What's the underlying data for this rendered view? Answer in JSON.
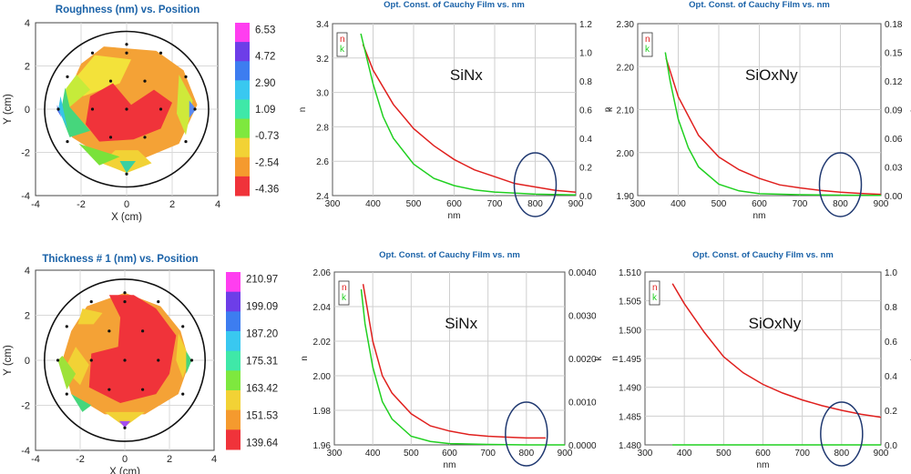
{
  "chart_data": [
    {
      "type": "heatmap",
      "title": "Roughness (nm) vs. Position",
      "xlabel": "X (cm)",
      "ylabel": "Y (cm)",
      "xlim": [
        -4,
        4
      ],
      "ylim": [
        -4,
        4
      ],
      "xticks": [
        "-4",
        "-2",
        "0",
        "2",
        "4"
      ],
      "yticks": [
        "4",
        "2",
        "0",
        "-2",
        "-4"
      ],
      "colorbar": [
        "6.53",
        "4.72",
        "2.90",
        "1.09",
        "-0.73",
        "-2.54",
        "-4.36"
      ],
      "points": [
        [
          0,
          3
        ],
        [
          -1.5,
          2.6
        ],
        [
          0,
          2.6
        ],
        [
          1.5,
          2.6
        ],
        [
          -2.6,
          1.5
        ],
        [
          -0.7,
          1.3
        ],
        [
          0.8,
          1.3
        ],
        [
          2.6,
          1.5
        ],
        [
          -3,
          0
        ],
        [
          -1.5,
          0
        ],
        [
          0,
          0
        ],
        [
          1.5,
          0
        ],
        [
          3,
          0
        ],
        [
          -2.6,
          -1.5
        ],
        [
          -0.7,
          -1.3
        ],
        [
          0.8,
          -1.3
        ],
        [
          2.6,
          -1.5
        ],
        [
          0,
          -3
        ]
      ]
    },
    {
      "type": "line",
      "title": "Opt. Const. of Cauchy Film vs. nm",
      "annotation": "SiNx",
      "xlabel": "nm",
      "ylabel": "n",
      "y2label": "k",
      "xlim": [
        300,
        900
      ],
      "ylim": [
        2.4,
        3.4
      ],
      "y2lim": [
        0.0,
        1.2
      ],
      "xticks": [
        "300",
        "400",
        "500",
        "600",
        "700",
        "800",
        "900"
      ],
      "yticks": [
        "3.4",
        "3.2",
        "3.0",
        "2.8",
        "2.6",
        "2.4"
      ],
      "y2ticks": [
        "1.2",
        "1.0",
        "0.8",
        "0.6",
        "0.4",
        "0.2",
        "0.0"
      ],
      "legend": [
        "n",
        "k"
      ],
      "series": [
        {
          "name": "n",
          "color": "#e0201e",
          "x": [
            375,
            400,
            450,
            500,
            550,
            600,
            650,
            700,
            750,
            800,
            850,
            900
          ],
          "y": [
            3.28,
            3.13,
            2.93,
            2.79,
            2.69,
            2.61,
            2.55,
            2.51,
            2.47,
            2.45,
            2.43,
            2.42
          ]
        },
        {
          "name": "k",
          "color": "#20d020",
          "x": [
            370,
            400,
            425,
            450,
            500,
            550,
            600,
            650,
            700,
            800,
            900
          ],
          "y": [
            1.13,
            0.78,
            0.55,
            0.4,
            0.22,
            0.12,
            0.07,
            0.04,
            0.025,
            0.01,
            0.005
          ],
          "axis": "y2"
        }
      ],
      "highlight_x": 800
    },
    {
      "type": "line",
      "title": "Opt. Const. of Cauchy Film vs. nm",
      "annotation": "SiOxNy",
      "xlabel": "nm",
      "ylabel": "n",
      "y2label": "k",
      "xlim": [
        300,
        900
      ],
      "ylim": [
        1.9,
        2.3
      ],
      "y2lim": [
        0.0,
        0.18
      ],
      "xticks": [
        "300",
        "400",
        "500",
        "600",
        "700",
        "800",
        "900"
      ],
      "yticks": [
        "2.30",
        "2.20",
        "2.10",
        "2.00",
        "1.90"
      ],
      "y2ticks": [
        "0.18",
        "0.15",
        "0.12",
        "0.09",
        "0.06",
        "0.03",
        "0.00"
      ],
      "legend": [
        "n",
        "k"
      ],
      "series": [
        {
          "name": "n",
          "color": "#e0201e",
          "x": [
            370,
            400,
            450,
            500,
            550,
            600,
            650,
            700,
            750,
            800,
            850,
            900
          ],
          "y": [
            2.22,
            2.13,
            2.04,
            1.99,
            1.96,
            1.94,
            1.925,
            1.918,
            1.912,
            1.908,
            1.905,
            1.903
          ]
        },
        {
          "name": "k",
          "color": "#20d020",
          "x": [
            368,
            380,
            400,
            425,
            450,
            500,
            550,
            600,
            700,
            800,
            900
          ],
          "y": [
            0.15,
            0.12,
            0.08,
            0.05,
            0.03,
            0.012,
            0.005,
            0.002,
            0.001,
            0.0005,
            0.0003
          ],
          "axis": "y2"
        }
      ],
      "highlight_x": 800
    },
    {
      "type": "heatmap",
      "title": "Thickness # 1 (nm) vs. Position",
      "xlabel": "X (cm)",
      "ylabel": "Y (cm)",
      "xlim": [
        -4,
        4
      ],
      "ylim": [
        -4,
        4
      ],
      "xticks": [
        "-4",
        "-2",
        "0",
        "2",
        "4"
      ],
      "yticks": [
        "4",
        "2",
        "0",
        "-2",
        "-4"
      ],
      "colorbar": [
        "210.97",
        "199.09",
        "187.20",
        "175.31",
        "163.42",
        "151.53",
        "139.64"
      ],
      "points": [
        [
          0,
          3
        ],
        [
          -1.5,
          2.6
        ],
        [
          0,
          2.6
        ],
        [
          1.5,
          2.6
        ],
        [
          -2.6,
          1.5
        ],
        [
          -0.7,
          1.3
        ],
        [
          0.8,
          1.3
        ],
        [
          2.6,
          1.5
        ],
        [
          -3,
          0
        ],
        [
          -1.5,
          0
        ],
        [
          0,
          0
        ],
        [
          1.5,
          0
        ],
        [
          3,
          0
        ],
        [
          -2.6,
          -1.5
        ],
        [
          -0.7,
          -1.3
        ],
        [
          0.8,
          -1.3
        ],
        [
          2.6,
          -1.5
        ],
        [
          0,
          -3
        ]
      ]
    },
    {
      "type": "line",
      "title": "Opt. Const. of Cauchy Film vs. nm",
      "annotation": "SiNx",
      "xlabel": "nm",
      "ylabel": "n",
      "y2label": "k",
      "xlim": [
        300,
        900
      ],
      "ylim": [
        1.96,
        2.06
      ],
      "y2lim": [
        0.0,
        0.004
      ],
      "xticks": [
        "300",
        "400",
        "500",
        "600",
        "700",
        "800",
        "900"
      ],
      "yticks": [
        "2.06",
        "2.04",
        "2.02",
        "2.00",
        "1.98",
        "1.96"
      ],
      "y2ticks": [
        "0.0040",
        "0.0030",
        "0.0020",
        "0.0010",
        "0.0000"
      ],
      "legend": [
        "n",
        "k"
      ],
      "series": [
        {
          "name": "n",
          "color": "#e0201e",
          "x": [
            375,
            400,
            425,
            450,
            500,
            550,
            600,
            650,
            700,
            750,
            800,
            850
          ],
          "y": [
            2.053,
            2.02,
            2.0,
            1.99,
            1.978,
            1.971,
            1.968,
            1.966,
            1.965,
            1.9645,
            1.964,
            1.964
          ]
        },
        {
          "name": "k",
          "color": "#20d020",
          "x": [
            370,
            380,
            400,
            425,
            450,
            500,
            550,
            600,
            700,
            800,
            900
          ],
          "y": [
            0.0036,
            0.0028,
            0.0018,
            0.001,
            0.0006,
            0.0002,
            8e-05,
            3e-05,
            1e-05,
            0.0,
            0.0
          ],
          "axis": "y2"
        }
      ],
      "highlight_x": 800
    },
    {
      "type": "line",
      "title": "Opt. Const. of Cauchy Film vs. nm",
      "annotation": "SiOxNy",
      "xlabel": "nm",
      "ylabel": "n",
      "y2label": "k",
      "xlim": [
        300,
        900
      ],
      "ylim": [
        1.48,
        1.51
      ],
      "y2lim": [
        0.0,
        1.0
      ],
      "xticks": [
        "300",
        "400",
        "500",
        "600",
        "700",
        "800",
        "900"
      ],
      "yticks": [
        "1.510",
        "1.505",
        "1.500",
        "1.495",
        "1.490",
        "1.485",
        "1.480"
      ],
      "y2ticks": [
        "1.0",
        "0.8",
        "0.6",
        "0.4",
        "0.2",
        "0.0"
      ],
      "legend": [
        "n",
        "k"
      ],
      "series": [
        {
          "name": "n",
          "color": "#e0201e",
          "x": [
            370,
            400,
            450,
            500,
            550,
            600,
            650,
            700,
            750,
            800,
            850,
            900
          ],
          "y": [
            1.508,
            1.5045,
            1.4996,
            1.4953,
            1.4925,
            1.4905,
            1.489,
            1.4878,
            1.4868,
            1.486,
            1.4853,
            1.4848
          ]
        },
        {
          "name": "k",
          "color": "#20d020",
          "x": [
            370,
            900
          ],
          "y": [
            0.0,
            0.0
          ],
          "axis": "y2"
        }
      ],
      "highlight_x": 800
    }
  ]
}
